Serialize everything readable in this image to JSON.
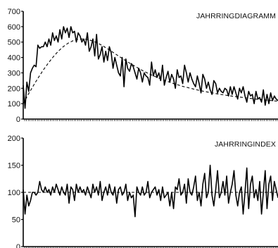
{
  "chart_data": [
    {
      "type": "line",
      "title": "JAHRRINGDIAGRAMM",
      "ylim": [
        0,
        700
      ],
      "yticks": [
        0,
        100,
        200,
        300,
        400,
        500,
        600,
        700
      ],
      "series": [
        {
          "values": [
            220,
            70,
            240,
            180,
            300,
            330,
            350,
            340,
            480,
            460,
            470,
            470,
            500,
            470,
            520,
            480,
            560,
            510,
            540,
            500,
            580,
            520,
            600,
            560,
            590,
            530,
            600,
            560,
            570,
            500,
            560,
            540,
            500,
            520,
            480,
            560,
            440,
            470,
            520,
            410,
            550,
            390,
            420,
            470,
            370,
            440,
            380,
            470,
            430,
            330,
            400,
            350,
            300,
            280,
            400,
            210,
            390,
            330,
            310,
            360,
            340,
            300,
            260,
            330,
            300,
            240,
            300,
            280,
            270,
            220,
            370,
            280,
            320,
            270,
            300,
            250,
            350,
            220,
            270,
            310,
            240,
            290,
            260,
            200,
            320,
            270,
            280,
            230,
            350,
            300,
            240,
            300,
            260,
            230,
            210,
            280,
            230,
            170,
            290,
            260,
            200,
            240,
            190,
            160,
            250,
            230,
            170,
            200,
            180,
            170,
            200,
            190,
            150,
            210,
            160,
            210,
            170,
            130,
            200,
            170,
            210,
            150,
            110,
            180,
            150,
            160,
            100,
            180,
            130,
            140,
            110,
            190,
            90,
            160,
            100,
            170,
            120,
            150,
            130,
            120
          ]
        },
        {
          "values": [
            100,
            160,
            215,
            268,
            318,
            363,
            404,
            440,
            470,
            493,
            509,
            518,
            520,
            516,
            506,
            492,
            474,
            454,
            433,
            411,
            390,
            369,
            350,
            331,
            313,
            297,
            282,
            268,
            255,
            243,
            232,
            222,
            212,
            204,
            196,
            188,
            181,
            175,
            169,
            163,
            158,
            153,
            148,
            144,
            140,
            136,
            132,
            128,
            125,
            122,
            119,
            116
          ]
        }
      ]
    },
    {
      "type": "line",
      "title": "JAHRRINGINDEX",
      "ylim": [
        0,
        200
      ],
      "yticks": [
        0,
        50,
        100,
        150,
        200
      ],
      "series": [
        {
          "values": [
            105,
            60,
            95,
            75,
            85,
            100,
            100,
            95,
            100,
            120,
            105,
            100,
            110,
            100,
            105,
            95,
            110,
            100,
            115,
            105,
            95,
            110,
            100,
            95,
            115,
            80,
            110,
            105,
            85,
            115,
            100,
            110,
            100,
            105,
            95,
            110,
            100,
            90,
            115,
            100,
            110,
            95,
            120,
            85,
            100,
            110,
            95,
            115,
            100,
            95,
            110,
            80,
            105,
            110,
            95,
            100,
            115,
            85,
            100,
            90,
            95,
            55,
            110,
            100,
            95,
            110,
            95,
            100,
            120,
            90,
            100,
            105,
            110,
            95,
            105,
            85,
            110,
            90,
            95,
            100,
            75,
            100,
            70,
            110,
            105,
            125,
            95,
            100,
            115,
            80,
            125,
            100,
            95,
            110,
            130,
            85,
            100,
            75,
            115,
            135,
            90,
            100,
            150,
            95,
            75,
            105,
            140,
            90,
            100,
            120,
            95,
            130,
            80,
            100,
            115,
            140,
            95,
            75,
            100,
            110,
            60,
            100,
            145,
            70,
            115,
            130,
            90,
            105,
            85,
            120,
            60,
            100,
            140,
            70,
            115,
            130,
            85,
            120,
            105,
            90
          ]
        },
        {
          "values": [
            100,
            100
          ]
        }
      ]
    }
  ]
}
